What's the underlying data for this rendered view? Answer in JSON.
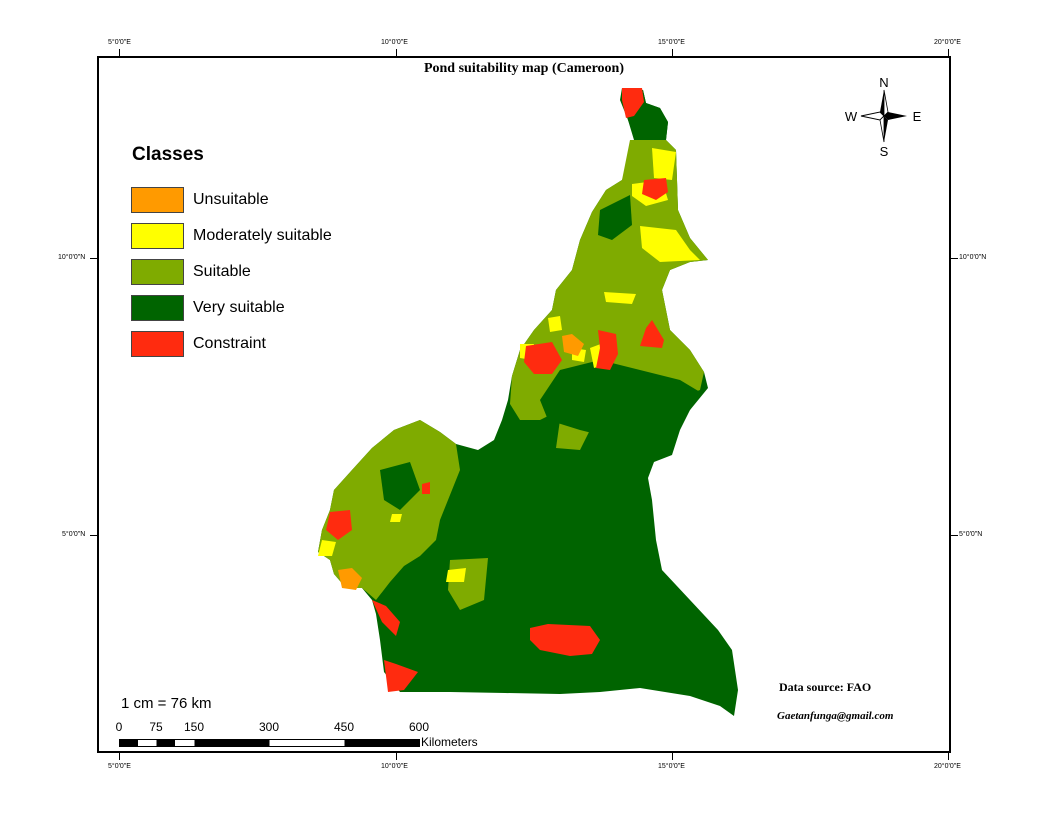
{
  "title": "Pond suitability map (Cameroon)",
  "legend": {
    "title": "Classes",
    "items": [
      {
        "label": "Unsuitable",
        "color": "#ff9a00"
      },
      {
        "label": "Moderately suitable",
        "color": "#ffff00"
      },
      {
        "label": "Suitable",
        "color": "#7fab00"
      },
      {
        "label": "Very suitable",
        "color": "#006400"
      },
      {
        "label": "Constraint",
        "color": "#ff2b0f"
      }
    ]
  },
  "graticule": {
    "lon_labels": [
      "5°0'0\"E",
      "10°0'0\"E",
      "15°0'0\"E",
      "20°0'0\"E"
    ],
    "lat_labels": [
      "10°0'0\"N",
      "5°0'0\"N"
    ]
  },
  "compass": {
    "n": "N",
    "s": "S",
    "e": "E",
    "w": "W"
  },
  "scale": {
    "ratio_text": "1 cm  =  76 km",
    "ticks": [
      "0",
      "75",
      "150",
      "300",
      "450",
      "600"
    ],
    "unit": "Kilometers"
  },
  "source_text": "Data source: FAO",
  "email_text": "Gaetanfunga@gmail.com"
}
